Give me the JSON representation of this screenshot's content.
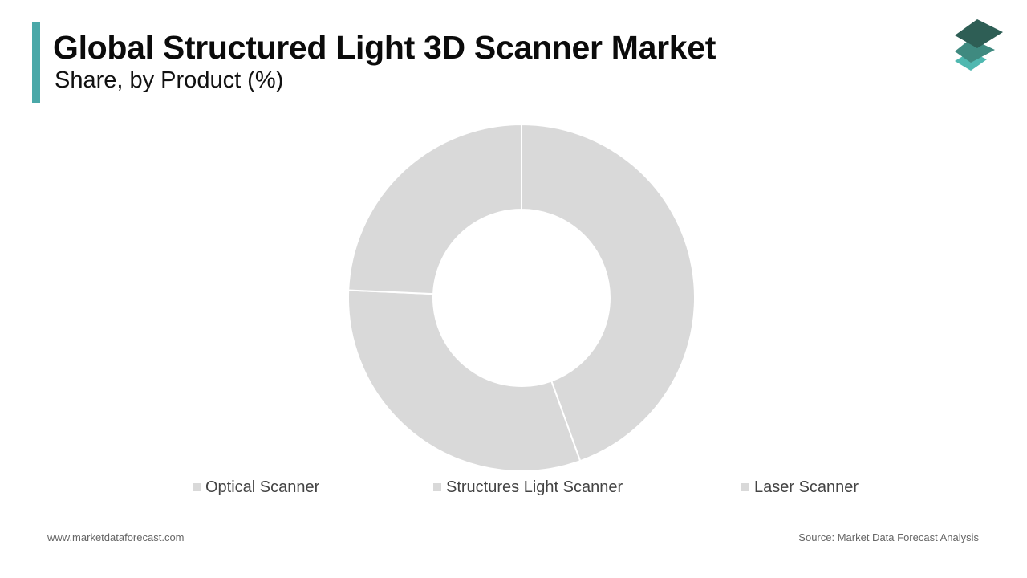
{
  "header": {
    "title": "Global Structured Light 3D Scanner Market",
    "subtitle": "Share, by Product (%)"
  },
  "colors": {
    "accent": "#4aa8a8",
    "slice_fill": "#d9d9d9",
    "slice_stroke": "#ffffff",
    "legend_swatch": "#d9d9d9",
    "logo_top": "#2e5e55",
    "logo_middle": "#3f8a80",
    "logo_bottom": "#4fb8b0"
  },
  "logo": {
    "icon": "stacked-layers-icon"
  },
  "chart_data": {
    "type": "pie",
    "donut": true,
    "categories": [
      "Optical Scanner",
      "Structures Light Scanner",
      "Laser Scanner"
    ],
    "values": [
      44.5,
      31.2,
      24.3
    ],
    "legend_position": "bottom",
    "grid": false
  },
  "footer": {
    "website": "www.marketdataforecast.com",
    "source": "Source: Market Data Forecast Analysis"
  }
}
